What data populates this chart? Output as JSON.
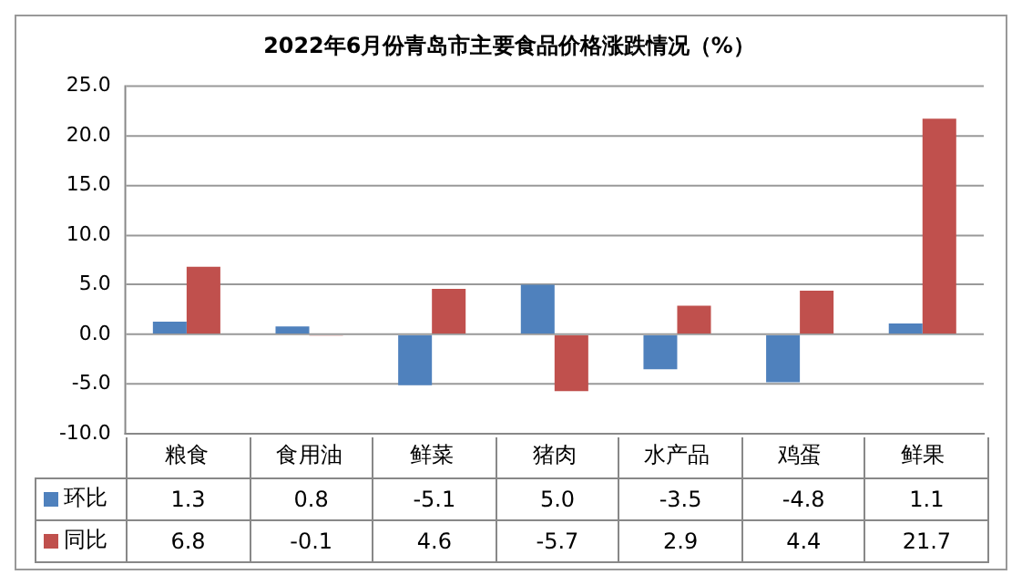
{
  "chart_data": {
    "type": "bar",
    "title": "2022年6月份青岛市主要食品价格涨跌情况（%）",
    "categories": [
      "粮食",
      "食用油",
      "鲜菜",
      "猪肉",
      "水产品",
      "鸡蛋",
      "鲜果"
    ],
    "series": [
      {
        "name": "环比",
        "color": "#4f81bd",
        "values": [
          1.3,
          0.8,
          -5.1,
          5.0,
          -3.5,
          -4.8,
          1.1
        ],
        "value_labels": [
          "1.3",
          "0.8",
          "-5.1",
          "5.0",
          "-3.5",
          "-4.8",
          "1.1"
        ]
      },
      {
        "name": "同比",
        "color": "#c0504d",
        "values": [
          6.8,
          -0.1,
          4.6,
          -5.7,
          2.9,
          4.4,
          21.7
        ],
        "value_labels": [
          "6.8",
          "-0.1",
          "4.6",
          "-5.7",
          "2.9",
          "4.4",
          "21.7"
        ]
      }
    ],
    "ylim": [
      -10,
      25
    ],
    "yticks": [
      {
        "value": -10,
        "label": "-10.0"
      },
      {
        "value": -5,
        "label": "-5.0"
      },
      {
        "value": 0,
        "label": "0.0"
      },
      {
        "value": 5,
        "label": "5.0"
      },
      {
        "value": 10,
        "label": "10.0"
      },
      {
        "value": 15,
        "label": "15.0"
      },
      {
        "value": 20,
        "label": "20.0"
      },
      {
        "value": 25,
        "label": "25.0"
      }
    ],
    "grid": "y",
    "legend": "bottom"
  }
}
